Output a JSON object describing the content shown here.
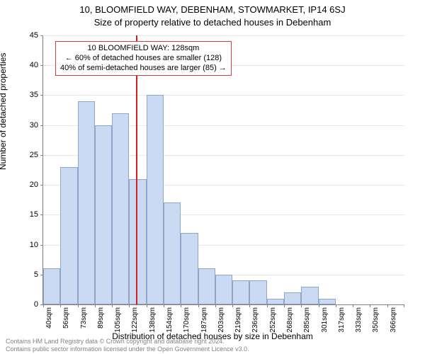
{
  "titles": {
    "line1": "10, BLOOMFIELD WAY, DEBENHAM, STOWMARKET, IP14 6SJ",
    "line2": "Size of property relative to detached houses in Debenham"
  },
  "annotation": {
    "line1": "10 BLOOMFIELD WAY: 128sqm",
    "line2": "← 60% of detached houses are smaller (128)",
    "line3": "40% of semi-detached houses are larger (85) →",
    "border_color": "#cc4040",
    "bg_color": "#ffffff",
    "text_color": "#000000"
  },
  "chart": {
    "type": "histogram",
    "ylabel": "Number of detached properties",
    "xlabel": "Distribution of detached houses by size in Debenham",
    "ylim": [
      0,
      45
    ],
    "ytick_step": 5,
    "grid_color": "#e9e9e9",
    "axis_color": "#808080",
    "bar_fill": "#c9daf2",
    "bar_border": "#8fa6c9",
    "marker_x": 128,
    "marker_color": "#d02020",
    "background_color": "#ffffff",
    "x_start": 40,
    "bin_width": 16.3,
    "n_bins": 21,
    "x_tick_labels": [
      "40sqm",
      "56sqm",
      "73sqm",
      "89sqm",
      "105sqm",
      "122sqm",
      "138sqm",
      "154sqm",
      "170sqm",
      "187sqm",
      "203sqm",
      "219sqm",
      "236sqm",
      "252sqm",
      "268sqm",
      "285sqm",
      "301sqm",
      "317sqm",
      "333sqm",
      "350sqm",
      "366sqm"
    ],
    "values": [
      6,
      23,
      34,
      30,
      32,
      21,
      35,
      17,
      12,
      6,
      5,
      4,
      4,
      1,
      2,
      3,
      1,
      0,
      0,
      0,
      0
    ]
  },
  "footer": {
    "line1": "Contains HM Land Registry data © Crown copyright and database right 2024.",
    "line2": "Contains public sector information licensed under the Open Government Licence v3.0."
  }
}
